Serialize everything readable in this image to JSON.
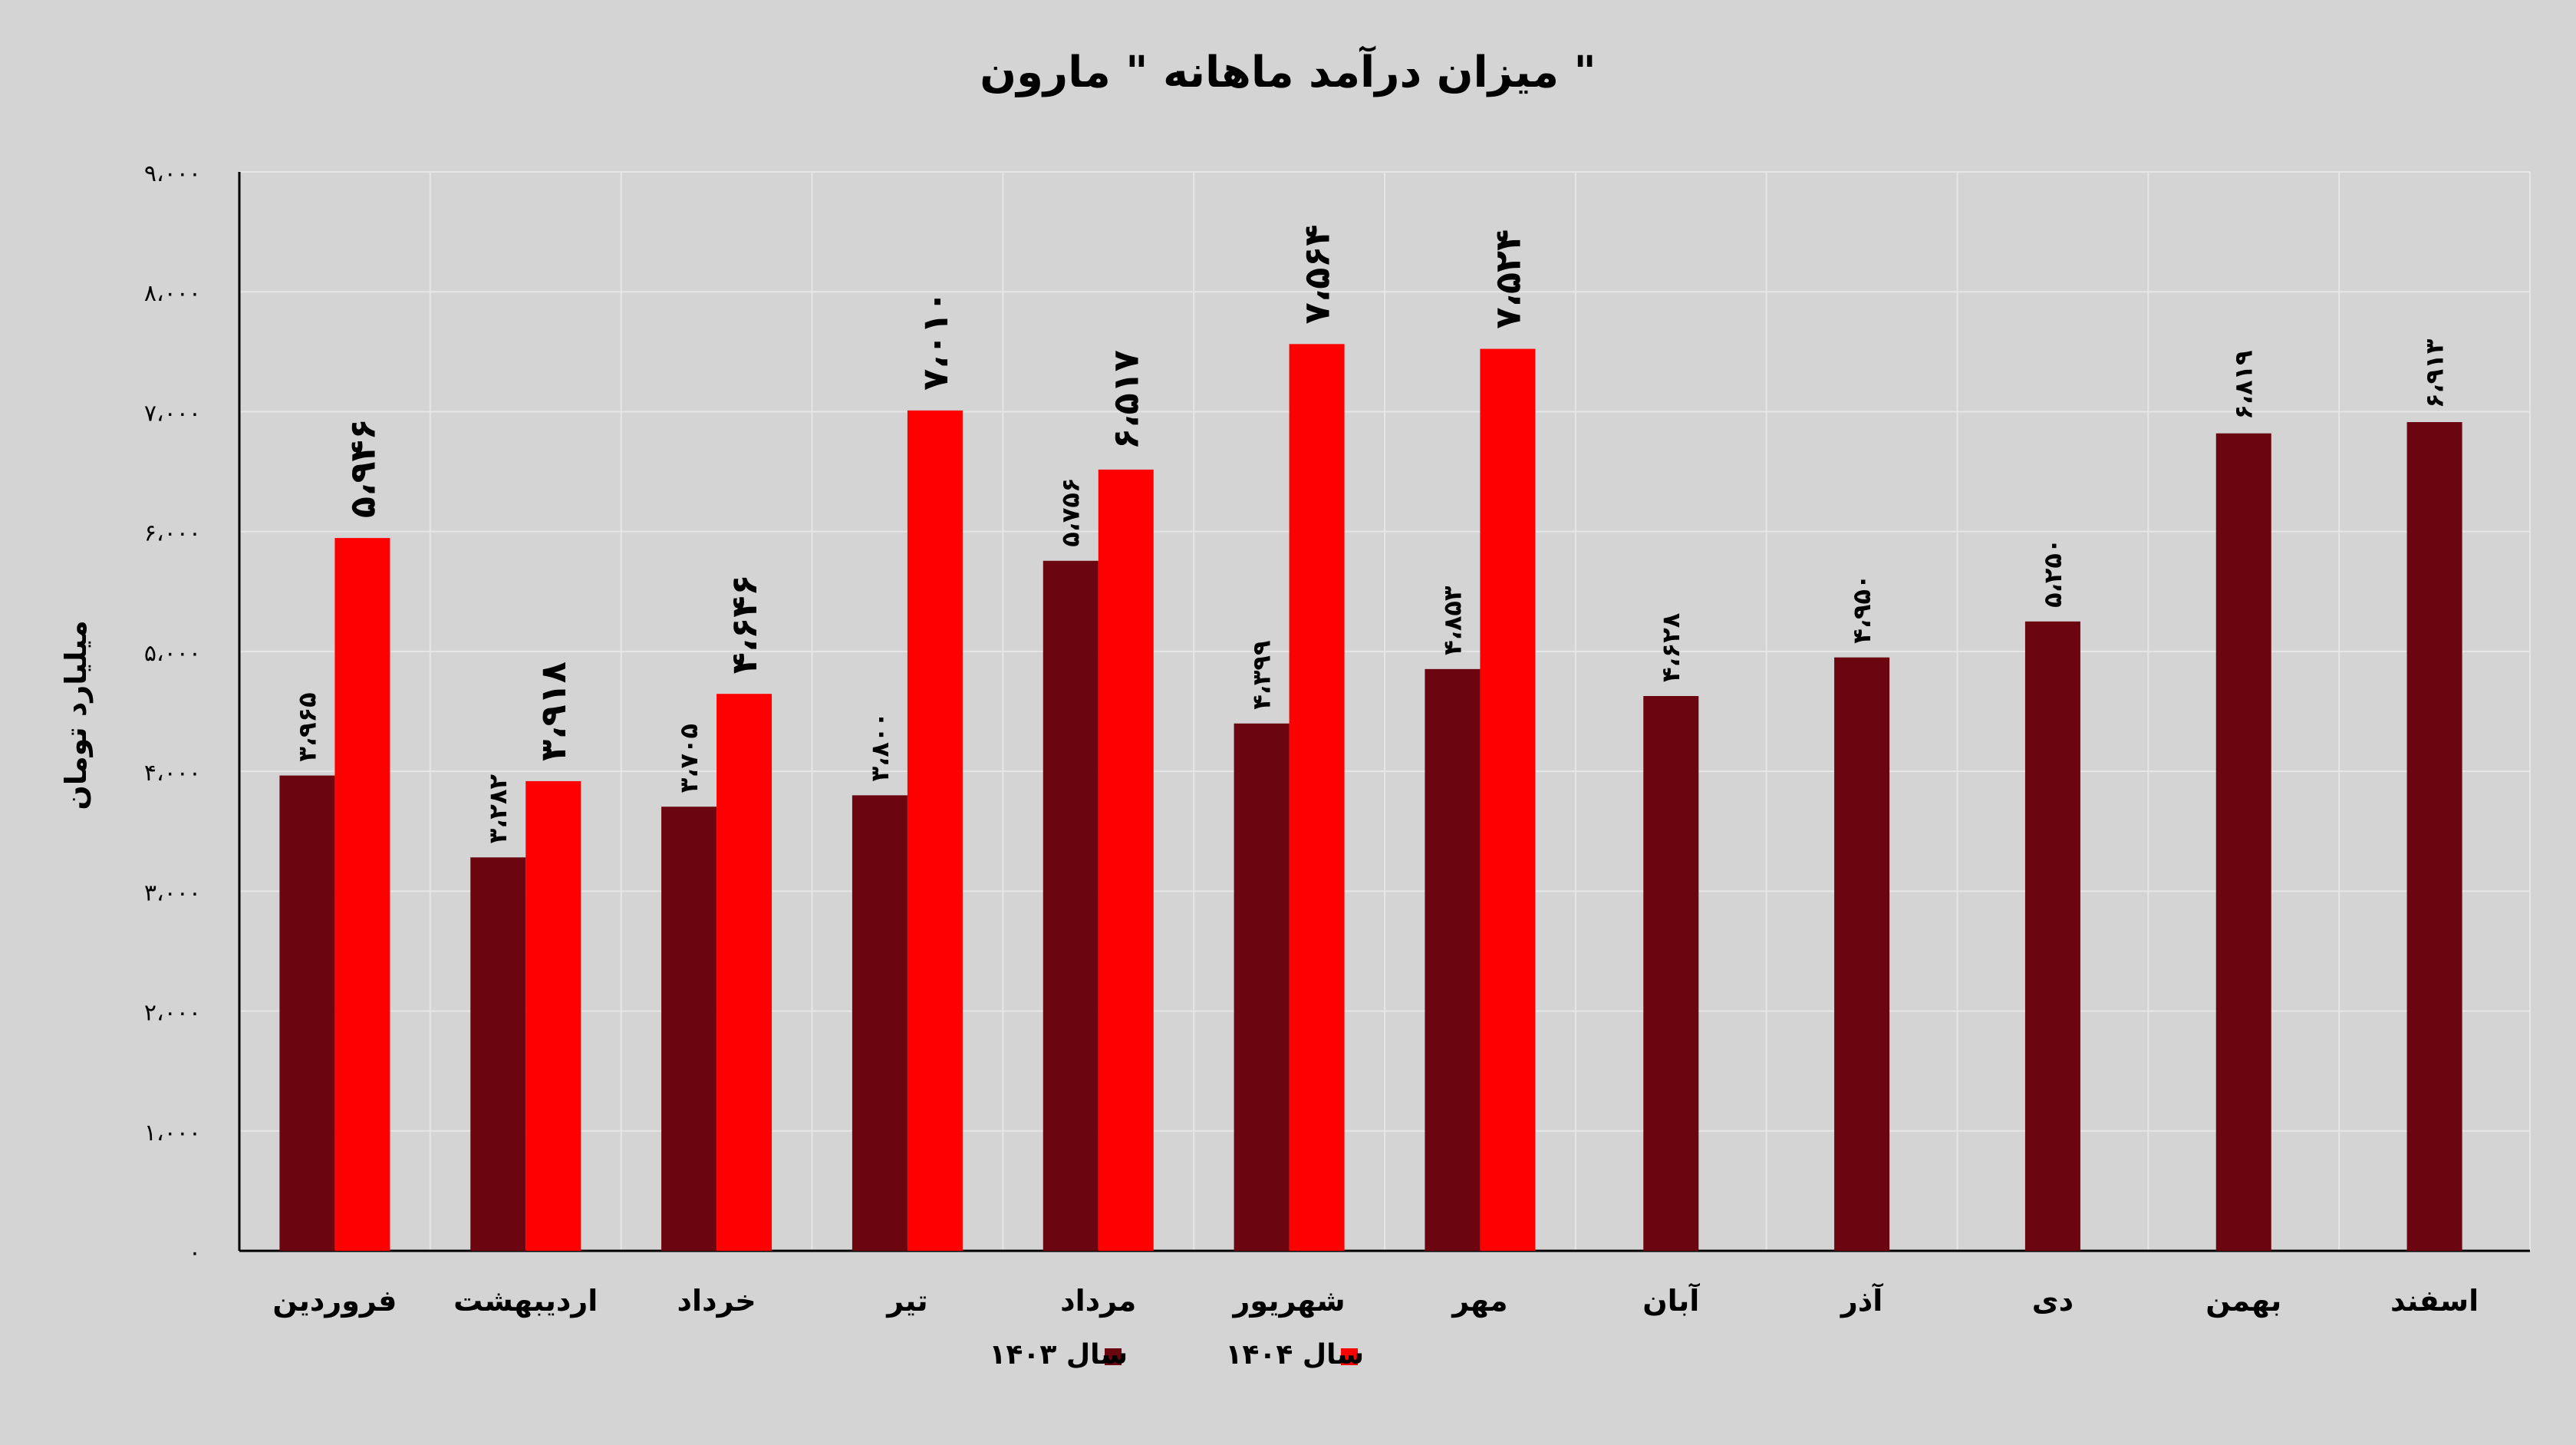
{
  "chart_data": {
    "type": "bar",
    "title": "میزان درآمد ماهانه \" مارون \"",
    "ylabel": "میلیارد تومان",
    "xlabel": "",
    "ylim": [
      0,
      9000
    ],
    "yticks": [
      0,
      1000,
      2000,
      3000,
      4000,
      5000,
      6000,
      7000,
      8000,
      9000
    ],
    "ytick_labels": [
      "۰",
      "۱،۰۰۰",
      "۲،۰۰۰",
      "۳،۰۰۰",
      "۴،۰۰۰",
      "۵،۰۰۰",
      "۶،۰۰۰",
      "۷،۰۰۰",
      "۸،۰۰۰",
      "۹،۰۰۰"
    ],
    "grid": true,
    "legend_position": "bottom",
    "categories": [
      "فروردین",
      "اردیبهشت",
      "خرداد",
      "تیر",
      "مرداد",
      "شهریور",
      "مهر",
      "آبان",
      "آذر",
      "دی",
      "بهمن",
      "اسفند"
    ],
    "series": [
      {
        "name": "سال ۱۴۰۳",
        "color": "#6b0610",
        "values": [
          3965,
          3282,
          3705,
          3800,
          5756,
          4399,
          4853,
          4628,
          4950,
          5250,
          6819,
          6913
        ],
        "labels": [
          "۳،۹۶۵",
          "۳،۲۸۲",
          "۳،۷۰۵",
          "۳،۸۰۰",
          "۵،۷۵۶",
          "۴،۳۹۹",
          "۴،۸۵۳",
          "۴،۶۲۸",
          "۴،۹۵۰",
          "۵،۲۵۰",
          "۶،۸۱۹",
          "۶،۹۱۳"
        ]
      },
      {
        "name": "سال ۱۴۰۴",
        "color": "#ff0000",
        "values": [
          5946,
          3918,
          4646,
          7010,
          6517,
          7564,
          7524,
          null,
          null,
          null,
          null,
          null
        ],
        "labels": [
          "۵،۹۴۶",
          "۳،۹۱۸",
          "۴،۶۴۶",
          "۷،۰۱۰",
          "۶،۵۱۷",
          "۷،۵۶۴",
          "۷،۵۲۴",
          null,
          null,
          null,
          null,
          null
        ]
      }
    ]
  }
}
